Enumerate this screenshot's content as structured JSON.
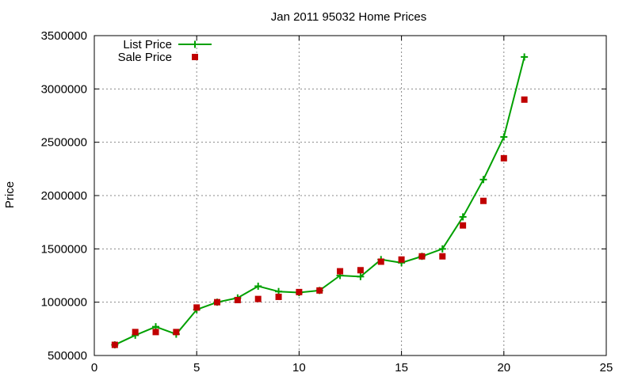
{
  "chart_data": {
    "type": "line",
    "title": "Jan 2011 95032 Home Prices",
    "xlabel": "",
    "ylabel": "Price",
    "xlim": [
      0,
      25
    ],
    "ylim": [
      500000,
      3500000
    ],
    "xticks": [
      0,
      5,
      10,
      15,
      20,
      25
    ],
    "yticks": [
      500000,
      1000000,
      1500000,
      2000000,
      2500000,
      3000000,
      3500000
    ],
    "grid": true,
    "legend_position": "top-left",
    "series": [
      {
        "name": "List Price",
        "style": "line-with-plus-markers",
        "color": "#00a000",
        "points": [
          [
            1,
            600000
          ],
          [
            2,
            690000
          ],
          [
            3,
            770000
          ],
          [
            4,
            700000
          ],
          [
            5,
            930000
          ],
          [
            6,
            1000000
          ],
          [
            7,
            1040000
          ],
          [
            8,
            1150000
          ],
          [
            9,
            1100000
          ],
          [
            10,
            1090000
          ],
          [
            11,
            1110000
          ],
          [
            12,
            1250000
          ],
          [
            13,
            1240000
          ],
          [
            14,
            1400000
          ],
          [
            15,
            1370000
          ],
          [
            16,
            1430000
          ],
          [
            17,
            1500000
          ],
          [
            18,
            1800000
          ],
          [
            19,
            2150000
          ],
          [
            20,
            2550000
          ],
          [
            21,
            3300000
          ]
        ]
      },
      {
        "name": "Sale Price",
        "style": "square-markers",
        "color": "#c00000",
        "points": [
          [
            1,
            600000
          ],
          [
            2,
            720000
          ],
          [
            3,
            720000
          ],
          [
            4,
            720000
          ],
          [
            5,
            950000
          ],
          [
            6,
            1000000
          ],
          [
            7,
            1020000
          ],
          [
            8,
            1030000
          ],
          [
            9,
            1050000
          ],
          [
            10,
            1095000
          ],
          [
            11,
            1110000
          ],
          [
            12,
            1290000
          ],
          [
            13,
            1300000
          ],
          [
            14,
            1380000
          ],
          [
            15,
            1400000
          ],
          [
            16,
            1430000
          ],
          [
            17,
            1430000
          ],
          [
            18,
            1720000
          ],
          [
            19,
            1950000
          ],
          [
            20,
            2350000
          ],
          [
            21,
            2900000
          ]
        ]
      }
    ]
  }
}
